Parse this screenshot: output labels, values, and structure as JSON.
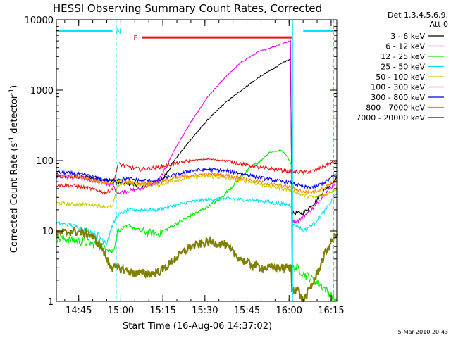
{
  "chart_data": {
    "type": "line",
    "title": "HESSI Observing Summary Count Rates, Corrected",
    "xlabel": "Start Time (16-Aug-06 14:37:02)",
    "ylabel": "Corrected Count Rate (s",
    "ylabel_sup1": "-1",
    "ylabel_mid": " detector",
    "ylabel_sup2": "-1",
    "ylabel_end": ")",
    "x_unit": "minutes after 14:37:02 UT",
    "xlim": [
      0,
      100
    ],
    "ylim": [
      1,
      10000
    ],
    "yscale": "log",
    "x_tick_labels": [
      "14:45",
      "15:00",
      "15:15",
      "15:30",
      "15:45",
      "16:00",
      "16:15"
    ],
    "x_tick_minutes": [
      7.97,
      22.97,
      37.97,
      52.97,
      67.97,
      82.97,
      97.97
    ],
    "y_tick_labels": [
      "1",
      "10",
      "100",
      "1000",
      "10000"
    ],
    "y_tick_values": [
      1,
      10,
      100,
      1000,
      10000
    ],
    "legend_header": [
      "Det 1,3,4,5,6,9,",
      "Att 0"
    ],
    "legend_position": "right",
    "timestamp": "5-Mar-2010 20:43",
    "flags": [
      {
        "label": "N",
        "color": "#00e5ee",
        "level": 7000,
        "segments": [
          [
            0,
            20
          ],
          [
            88,
            100
          ]
        ]
      },
      {
        "label": "F",
        "color": "#ee1111",
        "level": 5600,
        "segments": [
          [
            30.5,
            84
          ]
        ]
      }
    ],
    "vlines": [
      {
        "x": 21.3,
        "color": "#00e5ee",
        "style": "dash"
      },
      {
        "x": 84.2,
        "color": "#00e5ee",
        "style": "solid"
      },
      {
        "x": 98.8,
        "color": "#00e5ee",
        "style": "dash"
      }
    ],
    "series": [
      {
        "name": "3 - 6 keV",
        "color": "#000000",
        "t": [
          0,
          10,
          20,
          22,
          30,
          36,
          38,
          42,
          48,
          54,
          60,
          66,
          72,
          78,
          82,
          83.5,
          84,
          86,
          88,
          92,
          96,
          100
        ],
        "v": [
          60,
          58,
          52,
          48,
          45,
          48,
          55,
          100,
          200,
          380,
          650,
          1000,
          1500,
          2100,
          2600,
          2700,
          18,
          18,
          18,
          25,
          40,
          55
        ]
      },
      {
        "name": "6 - 12 keV",
        "color": "#ee00ee",
        "t": [
          0,
          10,
          20,
          22,
          30,
          36,
          38,
          42,
          48,
          54,
          60,
          66,
          72,
          78,
          82,
          83.5,
          84,
          86,
          88,
          92,
          96,
          100
        ],
        "v": [
          60,
          56,
          45,
          35,
          40,
          50,
          65,
          140,
          350,
          800,
          1500,
          2500,
          3500,
          4200,
          4800,
          5000,
          14,
          14,
          16,
          22,
          35,
          50
        ]
      },
      {
        "name": "12 - 25 keV",
        "color": "#00ee00",
        "t": [
          0,
          10,
          18,
          20,
          22,
          26,
          30,
          36,
          40,
          46,
          52,
          58,
          62,
          66,
          70,
          73,
          76,
          80,
          82,
          83.8,
          84,
          86,
          88,
          92,
          96,
          100
        ],
        "v": [
          8,
          7,
          6,
          5,
          10,
          12,
          10,
          9,
          11,
          15,
          20,
          28,
          40,
          60,
          85,
          100,
          130,
          140,
          120,
          90,
          3,
          3,
          2.5,
          2,
          1.5,
          1
        ]
      },
      {
        "name": "25 - 50 keV",
        "color": "#00e5ee",
        "t": [
          0,
          6,
          12,
          18,
          20,
          22,
          26,
          30,
          36,
          42,
          48,
          54,
          60,
          66,
          72,
          78,
          82,
          83.8,
          84,
          86,
          88,
          92,
          96,
          100
        ],
        "v": [
          13,
          12,
          10,
          7,
          12,
          17,
          20,
          20,
          20,
          23,
          26,
          28,
          29,
          28,
          27,
          25,
          24,
          23,
          12,
          12,
          10,
          13,
          20,
          35
        ]
      },
      {
        "name": "50 - 100 keV",
        "color": "#cccc00",
        "t": [
          0,
          6,
          12,
          18,
          20,
          22,
          26,
          30,
          36,
          42,
          48,
          54,
          60,
          66,
          72,
          78,
          84,
          88,
          92,
          96,
          100
        ],
        "v": [
          25,
          24,
          24,
          22,
          22,
          45,
          48,
          45,
          45,
          52,
          58,
          60,
          57,
          52,
          47,
          42,
          38,
          32,
          30,
          33,
          40
        ]
      },
      {
        "name": "100 - 300 keV",
        "color": "#ee1111",
        "t": [
          0,
          6,
          12,
          18,
          20,
          22,
          26,
          30,
          36,
          42,
          48,
          54,
          60,
          66,
          72,
          78,
          84,
          88,
          92,
          96,
          100
        ],
        "v": [
          45,
          44,
          40,
          35,
          40,
          90,
          80,
          75,
          80,
          90,
          100,
          105,
          100,
          90,
          80,
          75,
          70,
          68,
          72,
          85,
          100
        ]
      },
      {
        "name": "300 - 800 keV",
        "color": "#0000ee",
        "t": [
          0,
          6,
          12,
          18,
          20,
          22,
          26,
          30,
          36,
          42,
          48,
          54,
          60,
          66,
          72,
          78,
          84,
          88,
          92,
          96,
          100
        ],
        "v": [
          68,
          66,
          60,
          52,
          52,
          55,
          55,
          52,
          52,
          62,
          72,
          75,
          72,
          66,
          58,
          52,
          48,
          42,
          42,
          50,
          65
        ]
      },
      {
        "name": "800 - 7000 keV",
        "color": "#ff8800",
        "t": [
          0,
          6,
          12,
          18,
          20,
          22,
          26,
          30,
          36,
          42,
          48,
          54,
          60,
          66,
          72,
          78,
          84,
          88,
          92,
          96,
          100
        ],
        "v": [
          62,
          60,
          55,
          47,
          48,
          50,
          50,
          48,
          48,
          56,
          62,
          64,
          62,
          56,
          50,
          45,
          42,
          36,
          36,
          42,
          55
        ]
      },
      {
        "name": "7000 - 20000 keV",
        "color": "#808000",
        "t": [
          0,
          6,
          12,
          16,
          18,
          20,
          22,
          28,
          34,
          38,
          42,
          48,
          54,
          60,
          64,
          68,
          74,
          78,
          83.8,
          84,
          86,
          88,
          92,
          96,
          100
        ],
        "v": [
          9,
          10,
          9,
          6,
          4,
          3,
          3,
          2.5,
          2.5,
          2.8,
          4,
          6,
          7,
          6.5,
          4.5,
          3.5,
          3,
          3,
          3,
          1.5,
          1.5,
          1,
          2,
          5,
          9.5
        ]
      }
    ]
  }
}
